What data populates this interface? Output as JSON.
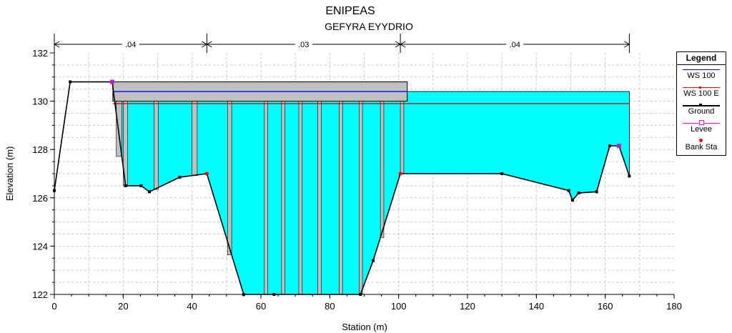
{
  "chart_data": {
    "type": "area",
    "title": "ENIPEAS",
    "subtitle": "GEFYRA EYYDRIO",
    "xlabel": "Station (m)",
    "ylabel": "Elevation (m)",
    "xlim": [
      0,
      180
    ],
    "ylim": [
      122,
      132
    ],
    "xticks": [
      0,
      20,
      40,
      60,
      80,
      100,
      120,
      140,
      160,
      180
    ],
    "yticks": [
      122,
      124,
      126,
      128,
      130,
      132
    ],
    "grid": true,
    "legend_position": "right",
    "water_surface": 130.4,
    "water_surface_e": 129.9,
    "bridge_deck": {
      "x_start": 17,
      "x_end": 102.5,
      "low_chord": 130,
      "high_chord": 130.8
    },
    "piers": [
      [
        18,
        19.6
      ],
      [
        20,
        21.3
      ],
      [
        29,
        30.2
      ],
      [
        40,
        41.5
      ],
      [
        50.3,
        51.5
      ],
      [
        61,
        62
      ],
      [
        66,
        67
      ],
      [
        71,
        72
      ],
      [
        76.5,
        77.5
      ],
      [
        82.7,
        83.7
      ],
      [
        88.5,
        89.5
      ],
      [
        94.7,
        95.7
      ],
      [
        100.5,
        101.5
      ]
    ],
    "manning": {
      "segments": [
        {
          "label": ".04",
          "x_start": 0,
          "x_end": 44.3
        },
        {
          "label": ".03",
          "x_start": 44.3,
          "x_end": 100.5
        },
        {
          "label": ".04",
          "x_start": 100.5,
          "x_end": 167
        }
      ]
    },
    "ground": {
      "x": [
        0,
        4.6,
        16.8,
        20.7,
        25.2,
        27.6,
        36.4,
        44.3,
        55,
        63.8,
        88.9,
        92.6,
        100.5,
        130,
        149.4,
        150.5,
        152.3,
        157.5,
        161.3,
        164,
        167
      ],
      "y": [
        126.3,
        130.8,
        130.8,
        126.5,
        126.5,
        126.25,
        126.85,
        127,
        122,
        122,
        122,
        123.4,
        127,
        127,
        126.3,
        125.9,
        126.2,
        126.25,
        128.15,
        128.15,
        126.9
      ]
    },
    "levee": {
      "x": [
        16.8,
        164
      ],
      "y": [
        130.8,
        128.15
      ]
    },
    "bank_sta": {
      "x": [
        44.3,
        100.5
      ],
      "y": [
        127,
        127
      ]
    },
    "legend": {
      "title": "Legend",
      "entries": [
        {
          "name": "WS 100",
          "color": "#0000ff"
        },
        {
          "name": "WS 100 E",
          "color": "#ff0000"
        },
        {
          "name": "Ground",
          "color": "#000000"
        },
        {
          "name": "Levee",
          "color": "#ff00ff"
        },
        {
          "name": "Bank Sta",
          "color": "#ff0000"
        }
      ]
    },
    "colors": {
      "water": "#00ffff",
      "deck": "#c0c0c0",
      "pier": "#c0c0c0",
      "grid": "#c8c8c8"
    }
  }
}
